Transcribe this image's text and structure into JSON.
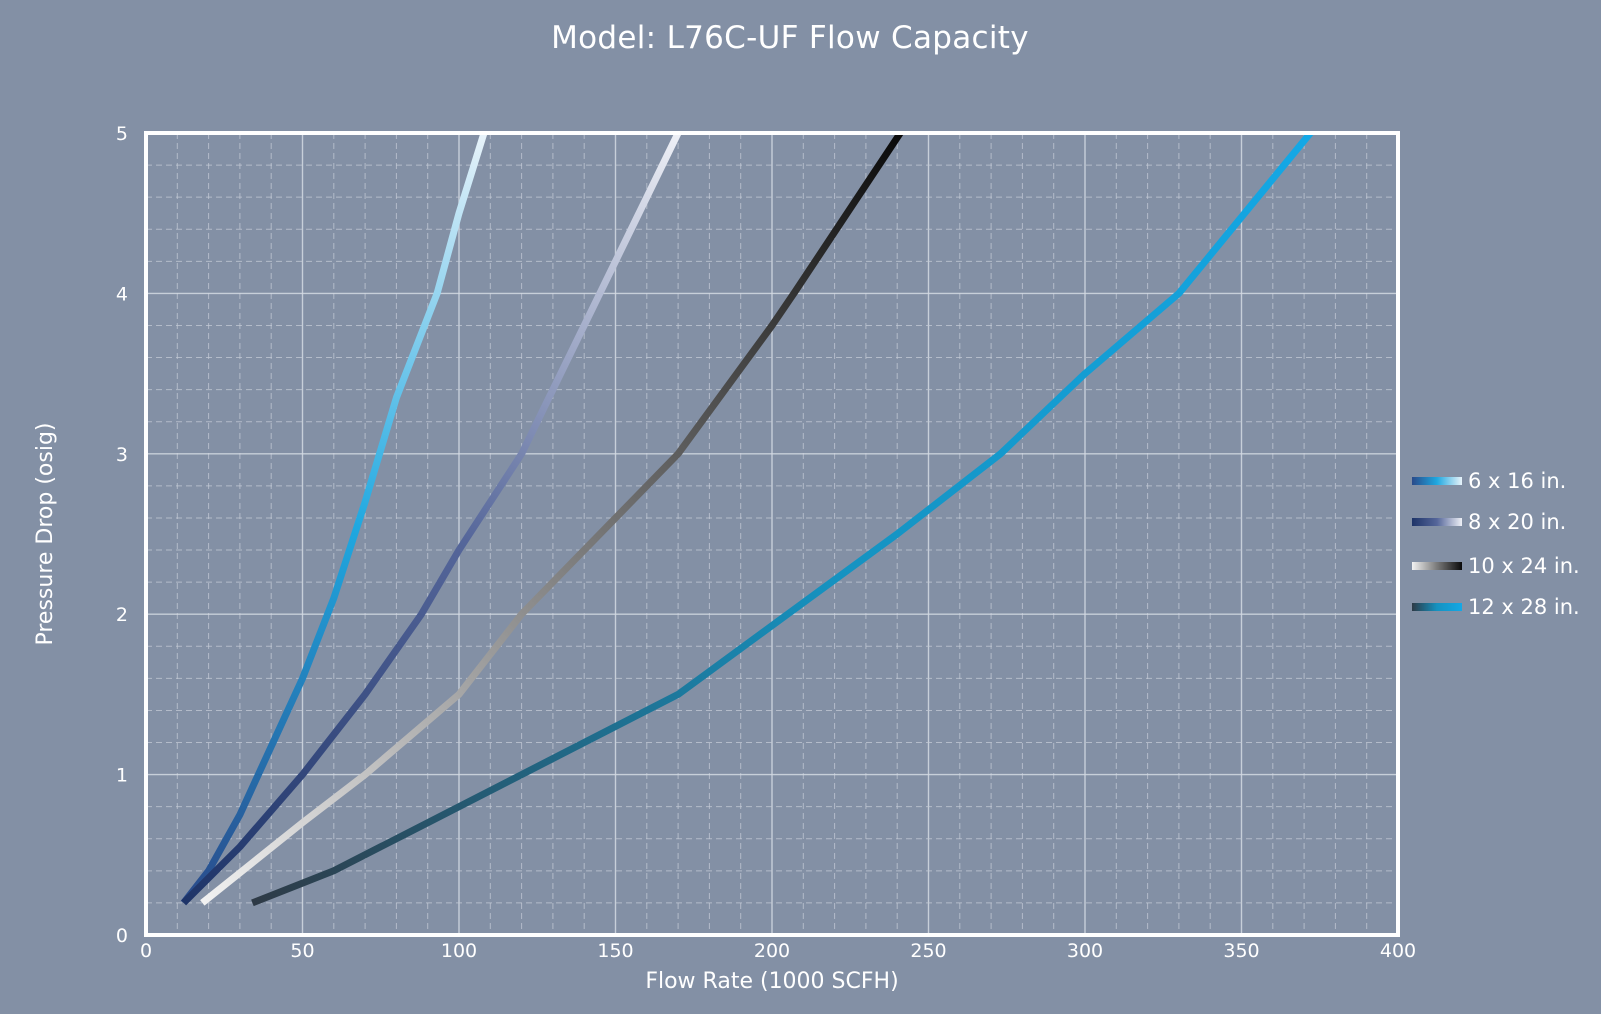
{
  "chart_data": {
    "type": "line",
    "title": "Model: L76C-UF Flow Capacity",
    "xlabel": "Flow Rate (1000 SCFH)",
    "ylabel": "Pressure Drop (osig)",
    "xlim": [
      0,
      400
    ],
    "ylim": [
      0,
      5
    ],
    "xticks": [
      0,
      50,
      100,
      150,
      200,
      250,
      300,
      350,
      400
    ],
    "yticks": [
      0,
      1,
      2,
      3,
      4,
      5
    ],
    "grid": true,
    "legend_position": "right",
    "series": [
      {
        "name": "6 x 16 in.",
        "colors": [
          "#2a4a8a",
          "#1fa8e0",
          "#e8f3fa"
        ],
        "points": [
          [
            12,
            0.2
          ],
          [
            20,
            0.4
          ],
          [
            30,
            0.75
          ],
          [
            50,
            1.6
          ],
          [
            60,
            2.1
          ],
          [
            70,
            2.7
          ],
          [
            80,
            3.35
          ],
          [
            93,
            4.0
          ],
          [
            100,
            4.5
          ],
          [
            108,
            5.0
          ]
        ]
      },
      {
        "name": "8 x 20 in.",
        "colors": [
          "#1e3468",
          "#55669a",
          "#eef0f6"
        ],
        "points": [
          [
            12,
            0.2
          ],
          [
            30,
            0.55
          ],
          [
            50,
            1.0
          ],
          [
            70,
            1.5
          ],
          [
            88,
            2.0
          ],
          [
            100,
            2.4
          ],
          [
            120,
            3.0
          ],
          [
            135,
            3.6
          ],
          [
            150,
            4.2
          ],
          [
            170,
            5.0
          ]
        ]
      },
      {
        "name": "10 x 24 in.",
        "colors": [
          "#f2f2f2",
          "#7a7a7a",
          "#0a0a0a"
        ],
        "points": [
          [
            18,
            0.2
          ],
          [
            50,
            0.7
          ],
          [
            70,
            1.0
          ],
          [
            100,
            1.5
          ],
          [
            120,
            2.0
          ],
          [
            150,
            2.6
          ],
          [
            170,
            3.0
          ],
          [
            200,
            3.8
          ],
          [
            207,
            4.0
          ],
          [
            241,
            5.0
          ]
        ]
      },
      {
        "name": "12 x 28 in.",
        "colors": [
          "#2e3a46",
          "#1592c0",
          "#14a8e6"
        ],
        "points": [
          [
            34,
            0.2
          ],
          [
            60,
            0.4
          ],
          [
            90,
            0.7
          ],
          [
            120,
            1.0
          ],
          [
            170,
            1.5
          ],
          [
            205,
            2.0
          ],
          [
            240,
            2.5
          ],
          [
            273,
            3.0
          ],
          [
            300,
            3.5
          ],
          [
            330,
            4.0
          ],
          [
            372,
            5.0
          ]
        ]
      }
    ]
  }
}
